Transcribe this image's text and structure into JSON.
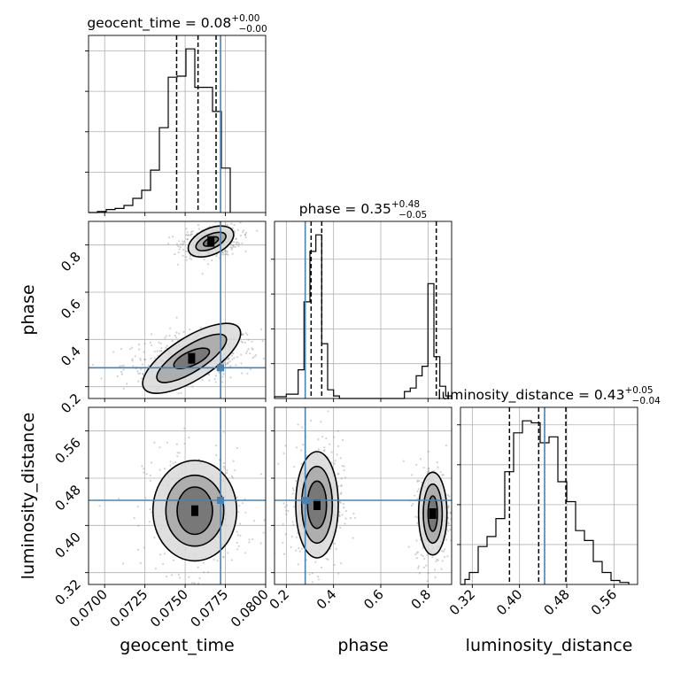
{
  "chart_data": {
    "type": "corner",
    "parameters": [
      "geocent_time",
      "phase",
      "luminosity_distance"
    ],
    "truths": {
      "geocent_time": 0.0772,
      "phase": 0.28,
      "luminosity_distance": 0.4425
    },
    "colors": {
      "truth": "#4682b4",
      "hist": "#000000",
      "scatter": "#7f7f7f",
      "grid": "#b0b0b0"
    },
    "marginals": [
      {
        "param": "geocent_time",
        "title_main": "geocent_time = 0.08",
        "title_sup": "+0.00",
        "title_sub": "−0.00",
        "quantiles": [
          0.07447,
          0.0758,
          0.07692
        ],
        "range": [
          0.069,
          0.08
        ],
        "bin_edges": [
          0.069,
          0.06955,
          0.0701,
          0.07065,
          0.0712,
          0.07175,
          0.0723,
          0.07285,
          0.0734,
          0.07395,
          0.0745,
          0.07505,
          0.0756,
          0.07615,
          0.0767,
          0.07725,
          0.0778
        ],
        "counts": [
          0,
          1,
          3,
          4,
          7,
          14,
          22,
          42,
          84,
          134,
          135,
          162,
          124,
          124,
          100,
          44
        ]
      },
      {
        "param": "phase",
        "title_main": "phase = 0.35",
        "title_sup": "+0.48",
        "title_sub": "−0.05",
        "quantiles": [
          0.305,
          0.35,
          0.835
        ],
        "range": [
          0.15,
          0.9
        ],
        "bin_edges": [
          0.15,
          0.2,
          0.25,
          0.275,
          0.3,
          0.325,
          0.35,
          0.375,
          0.4,
          0.425,
          0.7,
          0.725,
          0.75,
          0.775,
          0.8,
          0.825,
          0.85,
          0.875,
          0.9
        ],
        "counts": [
          2,
          5,
          33,
          111,
          169,
          188,
          63,
          10,
          3,
          0,
          8,
          12,
          26,
          37,
          132,
          48,
          14,
          3
        ]
      },
      {
        "param": "luminosity_distance",
        "title_main": "luminosity_distance = 0.43",
        "title_sup": "+0.05",
        "title_sub": "−0.04",
        "quantiles": [
          0.383,
          0.4325,
          0.4785
        ],
        "range": [
          0.3,
          0.6
        ],
        "bin_edges": [
          0.3,
          0.3075,
          0.315,
          0.33,
          0.345,
          0.36,
          0.375,
          0.39,
          0.405,
          0.42,
          0.435,
          0.45,
          0.465,
          0.48,
          0.495,
          0.51,
          0.525,
          0.54,
          0.555,
          0.57,
          0.585
        ],
        "counts": [
          0,
          5,
          12,
          38,
          48,
          66,
          113,
          152,
          164,
          162,
          142,
          148,
          103,
          83,
          54,
          44,
          23,
          12,
          4,
          2
        ]
      }
    ],
    "joint_panels": [
      {
        "x": "geocent_time",
        "y": "phase",
        "xlim": [
          0.069,
          0.08
        ],
        "ylim": [
          0.15,
          0.9
        ],
        "clusters": [
          {
            "cx": 0.0754,
            "cy": 0.32,
            "levels": [
              [
                0.0035,
                0.09,
                0.42
              ],
              [
                0.0025,
                0.055,
                0.42
              ],
              [
                0.0012,
                0.03,
                0.3
              ]
            ]
          },
          {
            "cx": 0.0766,
            "cy": 0.815,
            "levels": [
              [
                0.0015,
                0.055,
                0.3
              ],
              [
                0.001,
                0.03,
                0.3
              ],
              [
                0.0005,
                0.015,
                0.3
              ]
            ]
          }
        ]
      },
      {
        "x": "geocent_time",
        "y": "luminosity_distance",
        "xlim": [
          0.069,
          0.08
        ],
        "ylim": [
          0.3,
          0.6
        ],
        "clusters": [
          {
            "cx": 0.0756,
            "cy": 0.425,
            "levels": [
              [
                0.0026,
                0.085,
                0.0
              ],
              [
                0.0018,
                0.06,
                0.0
              ],
              [
                0.0011,
                0.04,
                0.0
              ]
            ]
          }
        ]
      },
      {
        "x": "phase",
        "y": "luminosity_distance",
        "xlim": [
          0.15,
          0.9
        ],
        "ylim": [
          0.3,
          0.6
        ],
        "clusters": [
          {
            "cx": 0.33,
            "cy": 0.435,
            "levels": [
              [
                0.09,
                0.09,
                0.0
              ],
              [
                0.065,
                0.065,
                0.0
              ],
              [
                0.04,
                0.04,
                0.0
              ]
            ]
          },
          {
            "cx": 0.82,
            "cy": 0.42,
            "levels": [
              [
                0.06,
                0.07,
                0.0
              ],
              [
                0.04,
                0.05,
                0.0
              ],
              [
                0.02,
                0.03,
                0.0
              ]
            ]
          }
        ]
      }
    ],
    "axes": {
      "geocent_time": {
        "ticks": [
          0.07,
          0.0725,
          0.075,
          0.0775,
          0.08
        ],
        "tick_labels": [
          "0.0700",
          "0.0725",
          "0.0750",
          "0.0775",
          "0.0800"
        ],
        "label": "geocent_time"
      },
      "phase": {
        "ticks": [
          0.2,
          0.4,
          0.6,
          0.8
        ],
        "tick_labels": [
          "0.2",
          "0.4",
          "0.6",
          "0.8"
        ],
        "label": "phase"
      },
      "luminosity_distance": {
        "ticks": [
          0.32,
          0.4,
          0.48,
          0.56
        ],
        "tick_labels": [
          "0.32",
          "0.40",
          "0.48",
          "0.56"
        ],
        "label": "luminosity_distance"
      }
    },
    "grid": true
  }
}
